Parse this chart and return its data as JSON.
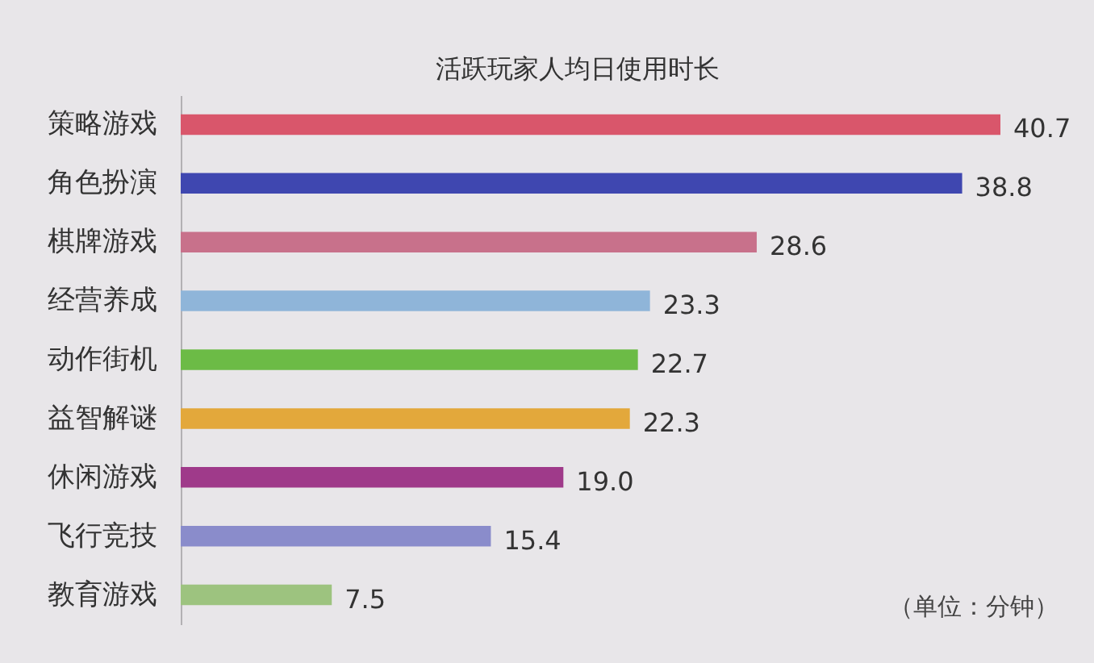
{
  "chart_data": {
    "type": "bar",
    "orientation": "horizontal",
    "title": "活跃玩家人均日使用时长",
    "categories": [
      "策略游戏",
      "角色扮演",
      "棋牌游戏",
      "经营养成",
      "动作街机",
      "益智解谜",
      "休闲游戏",
      "飞行竞技",
      "教育游戏"
    ],
    "values": [
      40.7,
      38.8,
      28.6,
      23.3,
      22.7,
      22.3,
      19.0,
      15.4,
      7.5
    ],
    "value_labels": [
      "40.7",
      "38.8",
      "28.6",
      "23.3",
      "22.7",
      "22.3",
      "19.0",
      "15.4",
      "7.5"
    ],
    "colors": [
      "#d9566b",
      "#3f47b0",
      "#c8718b",
      "#8fb5d9",
      "#6cbb46",
      "#e3a83b",
      "#9f3a8a",
      "#8a8ccb",
      "#9dc37f"
    ],
    "annotations": [
      "（单位：分钟）"
    ]
  }
}
